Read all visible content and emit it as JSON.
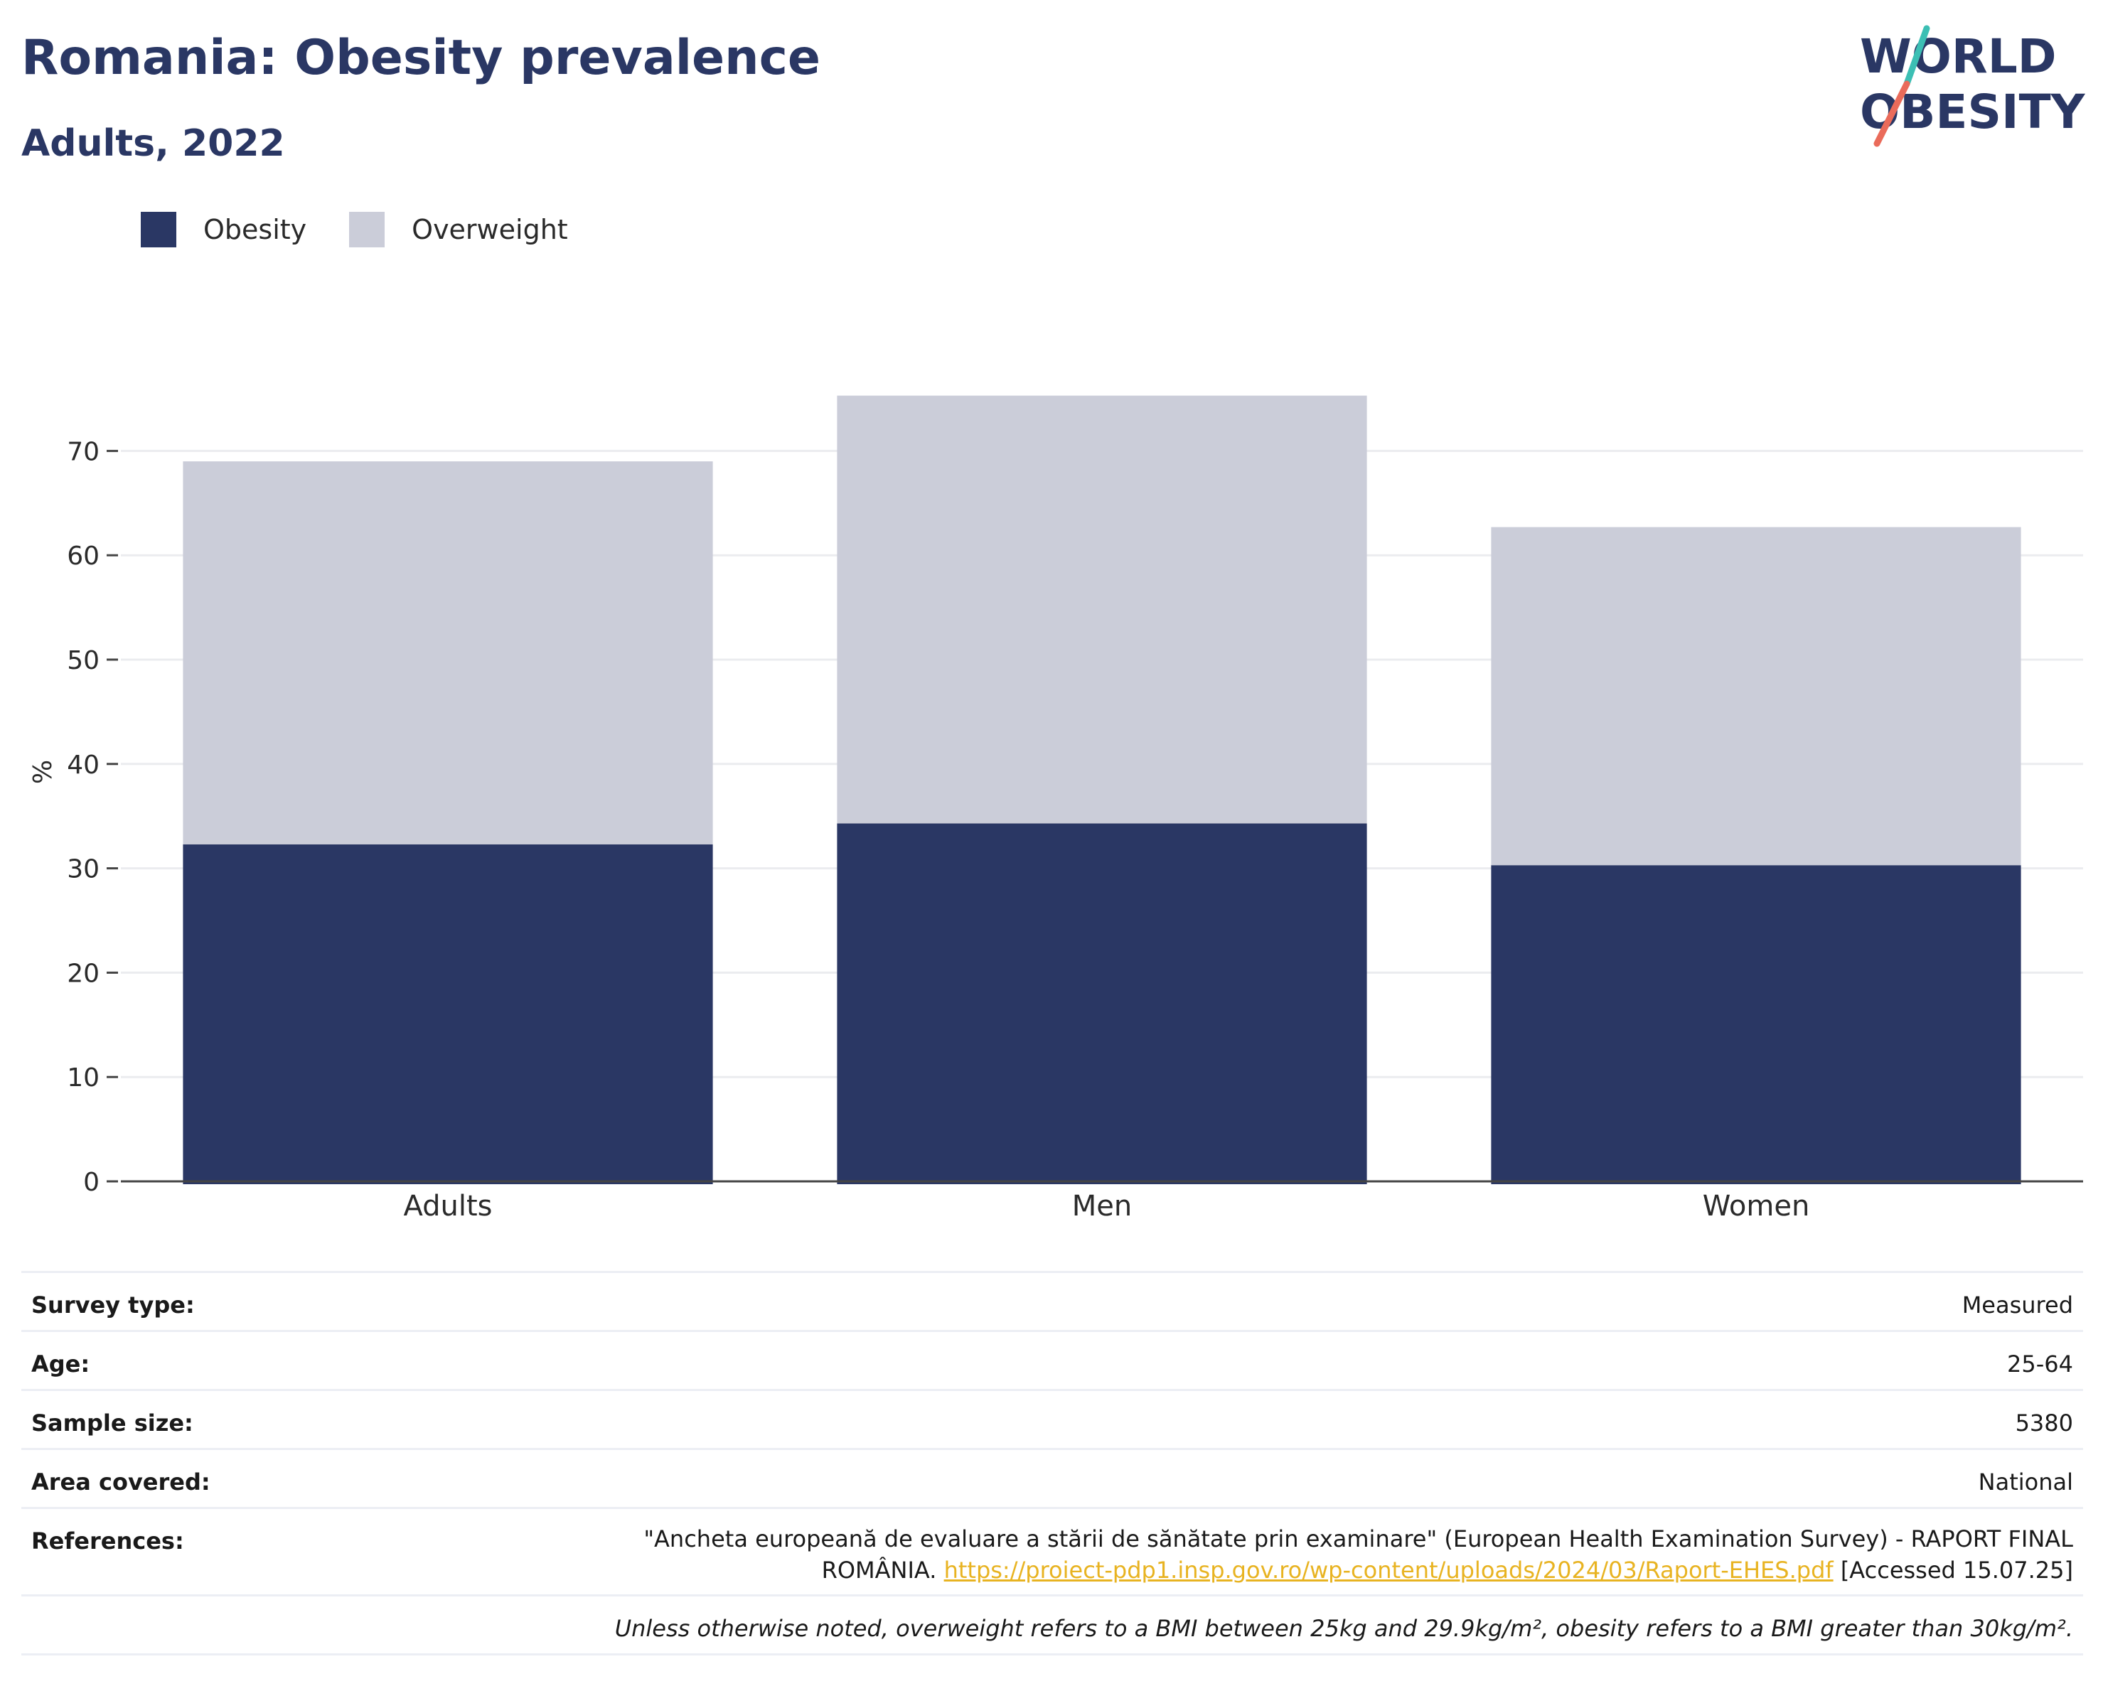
{
  "header": {
    "title": "Romania: Obesity prevalence",
    "subtitle": "Adults, 2022"
  },
  "logo": {
    "line1": "WORLD",
    "line2": "OBESITY",
    "colors": {
      "navy": "#2a3764",
      "teal": "#3cbfb4",
      "coral": "#ea6b5a"
    }
  },
  "legend": {
    "items": [
      {
        "label": "Obesity",
        "color": "#2a3764"
      },
      {
        "label": "Overweight",
        "color": "#cbcdd9"
      }
    ]
  },
  "chart_data": {
    "type": "bar",
    "stacked": true,
    "categories": [
      "Adults",
      "Men",
      "Women"
    ],
    "series": [
      {
        "name": "Obesity",
        "values": [
          32.3,
          34.3,
          30.3
        ],
        "color": "#2a3764"
      },
      {
        "name": "Overweight",
        "values": [
          36.7,
          41.0,
          32.4
        ],
        "color": "#cbcdd9"
      }
    ],
    "ylabel": "%",
    "ylim": [
      0,
      80
    ],
    "yticks": [
      0,
      10,
      20,
      30,
      40,
      50,
      60,
      70
    ],
    "grid": true,
    "legend_position": "top-left"
  },
  "info": {
    "survey_type": {
      "label": "Survey type:",
      "value": "Measured"
    },
    "age": {
      "label": "Age:",
      "value": "25-64"
    },
    "sample_size": {
      "label": "Sample size:",
      "value": "5380"
    },
    "area": {
      "label": "Area covered:",
      "value": "National"
    },
    "references": {
      "label": "References:",
      "text1": "\"Ancheta europeană de evaluare a stării de sănătate prin examinare\" (European Health Examination Survey) - RAPORT FINAL",
      "text2": "ROMÂNIA. ",
      "link": "https://proiect-pdp1.insp.gov.ro/wp-content/uploads/2024/03/Raport-EHES.pdf",
      "text3": " [Accessed 15.07.25]"
    },
    "note": "Unless otherwise noted, overweight refers to a BMI between 25kg and 29.9kg/m², obesity refers to a BMI greater than 30kg/m²."
  }
}
